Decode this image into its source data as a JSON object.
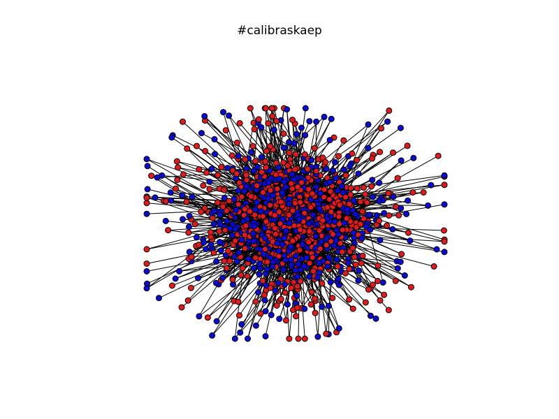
{
  "figure": {
    "title": "#calibraskaep"
  },
  "graph": {
    "node_classes": [
      {
        "name": "red",
        "color": "#e31a1c",
        "count": 700
      },
      {
        "name": "blue",
        "color": "#0a0ad6",
        "count": 620
      }
    ],
    "edge_color": "#000000",
    "node_outline_color": "#000000"
  }
}
